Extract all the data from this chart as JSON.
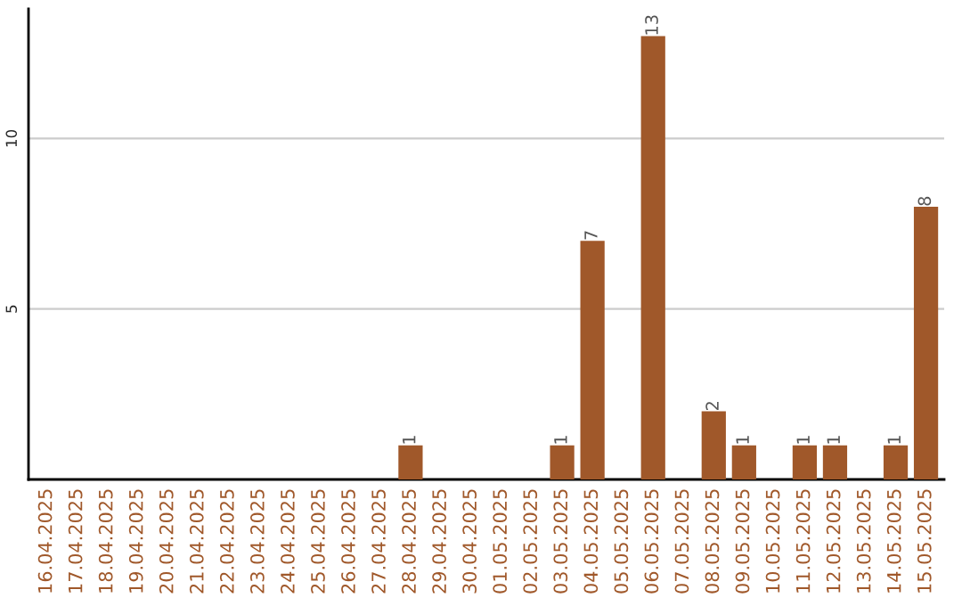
{
  "chart_data": {
    "type": "bar",
    "categories": [
      "16.04.2025",
      "17.04.2025",
      "18.04.2025",
      "19.04.2025",
      "20.04.2025",
      "21.04.2025",
      "22.04.2025",
      "23.04.2025",
      "24.04.2025",
      "25.04.2025",
      "26.04.2025",
      "27.04.2025",
      "28.04.2025",
      "29.04.2025",
      "30.04.2025",
      "01.05.2025",
      "02.05.2025",
      "03.05.2025",
      "04.05.2025",
      "05.05.2025",
      "06.05.2025",
      "07.05.2025",
      "08.05.2025",
      "09.05.2025",
      "10.05.2025",
      "11.05.2025",
      "12.05.2025",
      "13.05.2025",
      "14.05.2025",
      "15.05.2025"
    ],
    "values": [
      null,
      null,
      null,
      null,
      null,
      null,
      null,
      null,
      null,
      null,
      null,
      null,
      1,
      null,
      null,
      null,
      null,
      1,
      7,
      null,
      13,
      null,
      2,
      1,
      null,
      1,
      1,
      null,
      1,
      8
    ],
    "value_labels": [
      null,
      null,
      null,
      null,
      null,
      null,
      null,
      null,
      null,
      null,
      null,
      null,
      "1",
      null,
      null,
      null,
      null,
      "1",
      "7",
      null,
      "13",
      null,
      "2",
      "1",
      null,
      "1",
      "1",
      null,
      "1",
      "8"
    ],
    "color": "#a0582a",
    "ylim": [
      0,
      13.8
    ],
    "yticks": [
      5,
      10
    ],
    "grid": "y"
  }
}
